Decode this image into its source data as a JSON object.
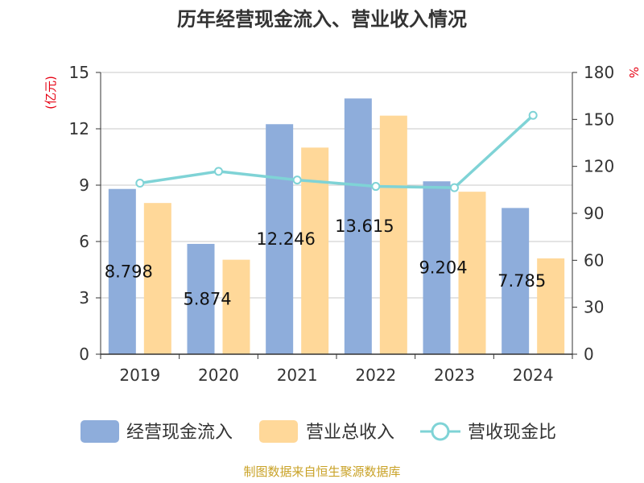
{
  "colors": {
    "cashflow": "#8eaddb",
    "revenue": "#ffd899",
    "ratio": "#7fd3d6",
    "grid": "#c8c8c8",
    "axis": "#333333",
    "unit": "#e60012",
    "source": "#c9a227"
  },
  "chart_data": {
    "type": "bar",
    "title": "历年经营现金流入、营业收入情况",
    "categories": [
      "2019",
      "2020",
      "2021",
      "2022",
      "2023",
      "2024"
    ],
    "series": [
      {
        "name": "经营现金流入",
        "type": "bar",
        "axis": "left",
        "values": [
          8.798,
          5.874,
          12.246,
          13.615,
          9.204,
          7.785
        ],
        "labels": [
          "8.798",
          "5.874",
          "12.246",
          "13.615",
          "9.204",
          "7.785"
        ]
      },
      {
        "name": "营业总收入",
        "type": "bar",
        "axis": "left",
        "values": [
          8.05,
          5.03,
          11.0,
          12.7,
          8.65,
          5.1
        ]
      },
      {
        "name": "营收现金比",
        "type": "line",
        "axis": "right",
        "values": [
          109.3,
          116.8,
          111.3,
          107.2,
          106.4,
          152.6
        ]
      }
    ],
    "y_left": {
      "unit": "(亿元)",
      "min": 0,
      "max": 15,
      "ticks": [
        "0",
        "3",
        "6",
        "9",
        "12",
        "15"
      ]
    },
    "y_right": {
      "unit": "%",
      "min": 0,
      "max": 180,
      "ticks": [
        "0",
        "30",
        "60",
        "90",
        "120",
        "150",
        "180"
      ]
    },
    "grid": true,
    "legend_position": "bottom"
  },
  "source": "制图数据来自恒生聚源数据库"
}
